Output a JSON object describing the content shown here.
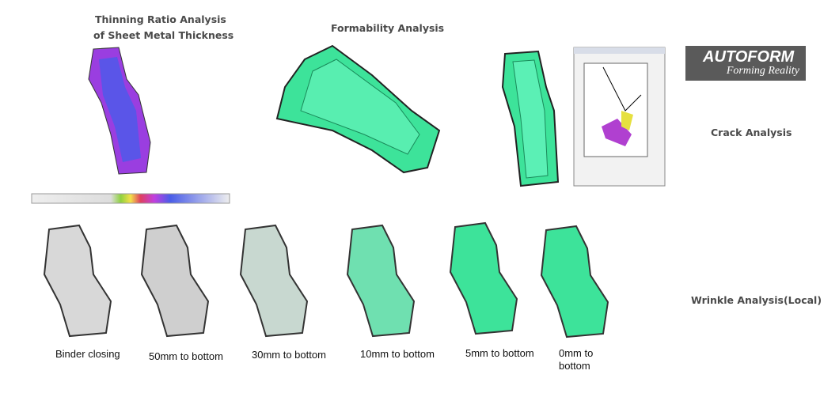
{
  "thinning": {
    "title_line1": "Thinning Ratio Analysis",
    "title_line2": "of  Sheet Metal Thickness"
  },
  "formability": {
    "title": "Formability Analysis"
  },
  "crack": {
    "title": "Crack Analysis"
  },
  "logo": {
    "name": "AUTOFORM",
    "tagline": "Forming Reality"
  },
  "wrinkle": {
    "title": "Wrinkle Analysis(Local)",
    "stages": [
      "Binder closing",
      "50mm to bottom",
      "30mm to bottom",
      "10mm to bottom",
      "5mm to bottom",
      "0mm to bottom"
    ]
  }
}
